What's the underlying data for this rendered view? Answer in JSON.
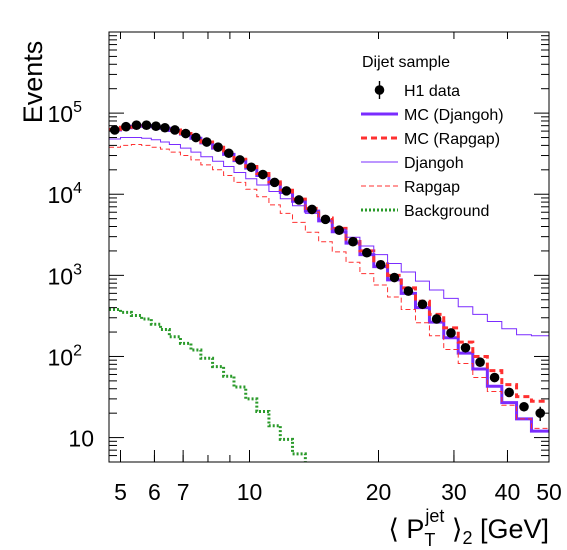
{
  "chart_data": {
    "type": "line",
    "title": "",
    "xlabel": "⟨ P_T^jet ⟩_2 [GeV]",
    "xlabel_parts": {
      "open": "⟨ P",
      "sub": "T",
      "sup": "jet",
      "close": "⟩",
      "sub2": "2",
      "unit": "[GeV]"
    },
    "ylabel": "Events",
    "x_scale": "log",
    "y_scale": "log",
    "xlim": [
      4.7,
      50
    ],
    "ylim": [
      5,
      1000000
    ],
    "grid": false,
    "legend_placement": "top-right",
    "legend_title": "Dijet sample",
    "x_ticks": [
      {
        "value": 5,
        "label": "5"
      },
      {
        "value": 6,
        "label": "6"
      },
      {
        "value": 7,
        "label": "7"
      },
      {
        "value": 10,
        "label": "10"
      },
      {
        "value": 20,
        "label": "20"
      },
      {
        "value": 30,
        "label": "30"
      },
      {
        "value": 40,
        "label": "40"
      },
      {
        "value": 50,
        "label": "50"
      }
    ],
    "y_ticks": [
      {
        "value": 10,
        "base": "10",
        "exp": ""
      },
      {
        "value": 100,
        "base": "10",
        "exp": "2"
      },
      {
        "value": 1000,
        "base": "10",
        "exp": "3"
      },
      {
        "value": 10000,
        "base": "10",
        "exp": "4"
      },
      {
        "value": 100000,
        "base": "10",
        "exp": "5"
      }
    ],
    "bin_edges": [
      4.7,
      5.0,
      5.3,
      5.6,
      5.9,
      6.2,
      6.5,
      6.9,
      7.3,
      7.7,
      8.2,
      8.7,
      9.2,
      9.8,
      10.4,
      11.1,
      11.8,
      12.6,
      13.5,
      14.5,
      15.6,
      16.8,
      18.1,
      19.5,
      21.0,
      22.6,
      24.4,
      26.3,
      28.4,
      30.7,
      33.2,
      35.9,
      38.8,
      42.0,
      45.5,
      50.0
    ],
    "series": [
      {
        "name": "H1 data",
        "style": "points",
        "color": "#000000",
        "values": [
          62000,
          68000,
          71000,
          71000,
          69000,
          66000,
          62000,
          56000,
          50000,
          44000,
          38000,
          32000,
          26500,
          21500,
          17500,
          14000,
          11000,
          8500,
          6500,
          4900,
          3600,
          2600,
          1900,
          1350,
          940,
          640,
          440,
          290,
          195,
          128,
          85,
          55,
          36,
          24,
          20
        ],
        "errors": [
          1200,
          1200,
          1200,
          1200,
          1100,
          1100,
          1000,
          1000,
          900,
          900,
          800,
          700,
          600,
          500,
          400,
          350,
          300,
          250,
          200,
          160,
          120,
          90,
          70,
          55,
          40,
          30,
          22,
          16,
          12,
          9,
          7,
          5,
          4,
          3,
          4
        ]
      },
      {
        "name": "MC (Djangoh)",
        "style": "step",
        "color": "#7a2cff",
        "width": 3,
        "values": [
          62000,
          66000,
          69000,
          70000,
          68000,
          65000,
          61000,
          55000,
          49000,
          43000,
          37000,
          31000,
          26000,
          21000,
          17000,
          13500,
          10500,
          8200,
          6200,
          4700,
          3450,
          2500,
          1800,
          1280,
          880,
          600,
          400,
          265,
          170,
          110,
          70,
          43,
          27,
          17,
          12
        ]
      },
      {
        "name": "MC (Rapgap)",
        "style": "step",
        "color": "#ff3030",
        "width": 3,
        "dash": "6,4",
        "values": [
          63000,
          67000,
          70000,
          71000,
          69000,
          66000,
          62000,
          56000,
          50000,
          44000,
          38000,
          32500,
          27000,
          22000,
          18000,
          14200,
          11200,
          8700,
          6700,
          5100,
          3800,
          2800,
          2000,
          1450,
          1000,
          700,
          480,
          330,
          225,
          150,
          100,
          67,
          45,
          32,
          28
        ]
      },
      {
        "name": "Djangoh",
        "style": "step",
        "color": "#7a2cff",
        "width": 1,
        "values": [
          48000,
          50000,
          50000,
          49000,
          47000,
          44000,
          41000,
          37000,
          33000,
          29000,
          25500,
          22000,
          18500,
          15500,
          13000,
          10800,
          8800,
          7200,
          5800,
          4700,
          3700,
          2950,
          2300,
          1800,
          1400,
          1100,
          850,
          660,
          520,
          410,
          330,
          270,
          220,
          185,
          180
        ]
      },
      {
        "name": "Rapgap",
        "style": "step",
        "color": "#ff3030",
        "width": 1,
        "dash": "5,3",
        "values": [
          38000,
          40000,
          41000,
          40000,
          38000,
          36000,
          33000,
          30000,
          26500,
          23000,
          20000,
          17000,
          14000,
          11500,
          9300,
          7400,
          5800,
          4500,
          3400,
          2600,
          1950,
          1450,
          1050,
          760,
          540,
          380,
          260,
          180,
          122,
          82,
          55,
          37,
          25,
          17,
          13
        ]
      },
      {
        "name": "Background",
        "style": "step",
        "color": "#2a9a2a",
        "width": 3,
        "dash": "2,2",
        "values": [
          380,
          350,
          320,
          290,
          250,
          215,
          175,
          145,
          120,
          95,
          75,
          57,
          42,
          30,
          21,
          14,
          9.5,
          6.3,
          4.5
        ]
      }
    ]
  }
}
